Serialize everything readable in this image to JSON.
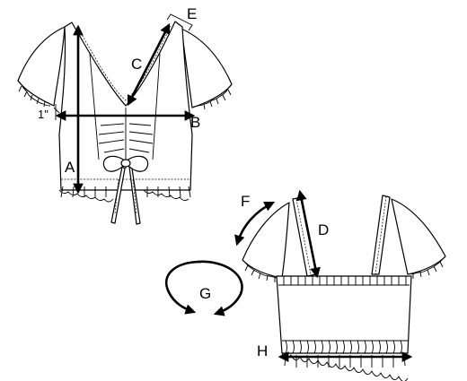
{
  "labels": {
    "A": "A",
    "B": "B",
    "C": "C",
    "D": "D",
    "E": "E",
    "F": "F",
    "G": "G",
    "H": "H",
    "one_inch": "1\""
  }
}
